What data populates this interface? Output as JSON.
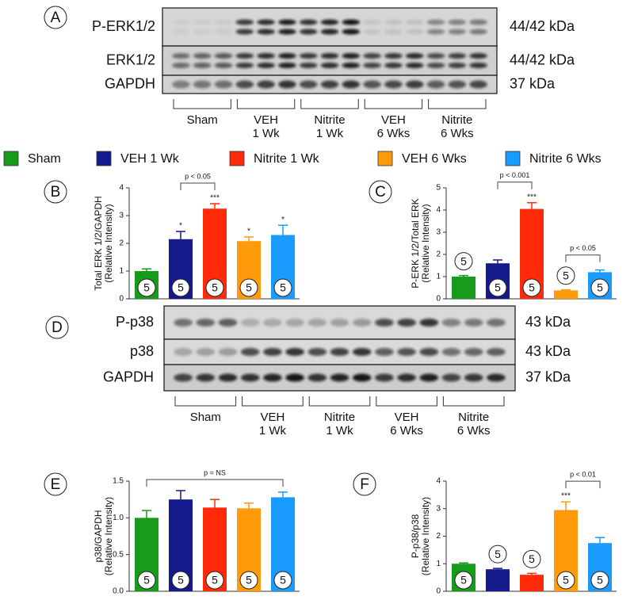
{
  "legend": {
    "categories": [
      "Sham",
      "VEH 1 Wk",
      "Nitrite 1 Wk",
      "VEH 6 Wks",
      "Nitrite 6 Wks"
    ],
    "colors": [
      "#169b1a",
      "#141a8c",
      "#ff2a0a",
      "#ff9a0a",
      "#1a9bff"
    ]
  },
  "blots": [
    {
      "panel": "A",
      "rows": [
        {
          "label": "P-ERK1/2",
          "size": "44/42 kDa"
        },
        {
          "label": "ERK1/2",
          "size": "44/42 kDa"
        },
        {
          "label": "GAPDH",
          "size": "37 kDa"
        }
      ],
      "groups": [
        [
          "Sham"
        ],
        [
          "VEH",
          "1 Wk"
        ],
        [
          "Nitrite",
          "1 Wk"
        ],
        [
          "VEH",
          "6 Wks"
        ],
        [
          "Nitrite",
          "6 Wks"
        ]
      ]
    },
    {
      "panel": "D",
      "rows": [
        {
          "label": "P-p38",
          "size": "43 kDa"
        },
        {
          "label": "p38",
          "size": "43 kDa"
        },
        {
          "label": "GAPDH",
          "size": "37 kDa"
        }
      ],
      "groups": [
        [
          "Sham"
        ],
        [
          "VEH",
          "1 Wk"
        ],
        [
          "Nitrite",
          "1 Wk"
        ],
        [
          "VEH",
          "6 Wks"
        ],
        [
          "Nitrite",
          "6 Wks"
        ]
      ]
    }
  ],
  "chart_data": [
    {
      "type": "bar",
      "panel": "B",
      "y_label": [
        "Total ERK 1/2/GAPDH",
        "(Relative Intensity)"
      ],
      "values": [
        1.0,
        2.15,
        3.25,
        2.08,
        2.3
      ],
      "errors": [
        0.08,
        0.28,
        0.18,
        0.15,
        0.35
      ],
      "n": [
        5,
        5,
        5,
        5,
        5
      ],
      "sig": [
        null,
        "*",
        "***",
        "*",
        "*"
      ],
      "brackets": [
        {
          "label": "p < 0.05",
          "between": [
            "VEH 1 Wk",
            "Nitrite 1 Wk"
          ]
        }
      ],
      "ylim": [
        0,
        4
      ],
      "yticks": [
        0,
        1,
        2,
        3,
        4
      ]
    },
    {
      "type": "bar",
      "panel": "C",
      "y_label": [
        "P-ERK 1/2/Total ERK",
        "(Relative Intensity)"
      ],
      "values": [
        1.0,
        1.6,
        4.05,
        0.38,
        1.2
      ],
      "errors": [
        0.05,
        0.15,
        0.28,
        0.02,
        0.1
      ],
      "n": [
        5,
        5,
        5,
        5,
        5
      ],
      "sig": [
        null,
        null,
        "***",
        null,
        null
      ],
      "brackets": [
        {
          "label": "p < 0.001",
          "between": [
            "VEH 1 Wk",
            "Nitrite 1 Wk"
          ]
        },
        {
          "label": "p < 0.05",
          "between": [
            "VEH 6 Wks",
            "Nitrite 6 Wks"
          ]
        }
      ],
      "ylim": [
        0,
        5
      ],
      "yticks": [
        0,
        1,
        2,
        3,
        4,
        5
      ]
    },
    {
      "type": "bar",
      "panel": "E",
      "y_label": [
        "p38/GAPDH",
        "(Relative Intensity)"
      ],
      "values": [
        1.0,
        1.25,
        1.14,
        1.13,
        1.28
      ],
      "errors": [
        0.1,
        0.12,
        0.11,
        0.07,
        0.07
      ],
      "n": [
        5,
        5,
        5,
        5,
        5
      ],
      "sig": [
        null,
        null,
        null,
        null,
        null
      ],
      "brackets": [
        {
          "label": "p = NS",
          "between": [
            "Sham",
            "Nitrite 6 Wks"
          ]
        }
      ],
      "ylim": [
        0,
        1.5
      ],
      "yticks": [
        {
          "value": 0,
          "label": "0.0"
        },
        0.5,
        {
          "value": 1,
          "label": "1.0"
        },
        1.5
      ]
    },
    {
      "type": "bar",
      "panel": "F",
      "y_label": [
        "P-p38/p38",
        "(Relative Intensity)"
      ],
      "values": [
        1.0,
        0.8,
        0.6,
        2.95,
        1.75
      ],
      "errors": [
        0.03,
        0.03,
        0.05,
        0.3,
        0.2
      ],
      "n": [
        5,
        5,
        5,
        5,
        5
      ],
      "sig": [
        null,
        null,
        null,
        "***",
        null
      ],
      "brackets": [
        {
          "label": "p < 0.01",
          "between": [
            "VEH 6 Wks",
            "Nitrite 6 Wks"
          ]
        }
      ],
      "ylim": [
        0,
        4
      ],
      "yticks": [
        0,
        1,
        2,
        3,
        4
      ]
    }
  ]
}
